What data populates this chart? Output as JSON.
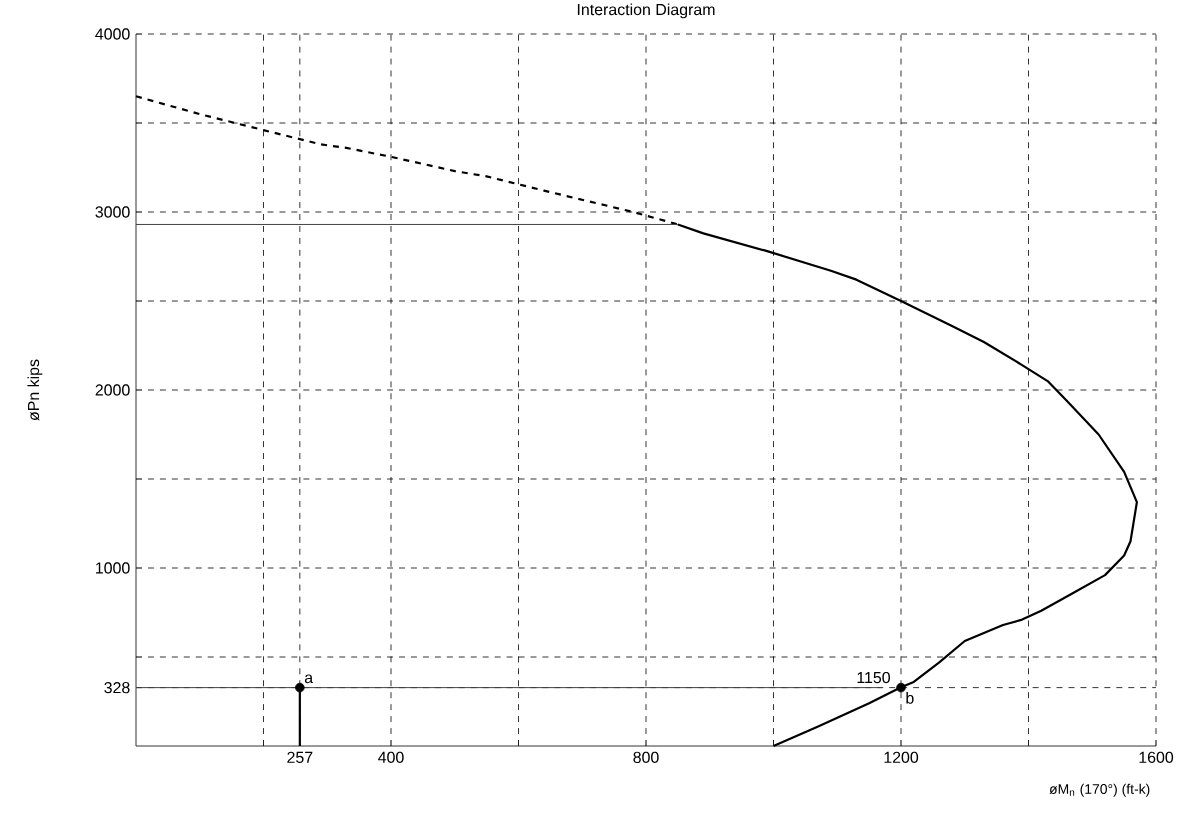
{
  "chart_data": {
    "type": "line",
    "title": "Interaction Diagram",
    "xlabel": "øM$_{n}$ (170°) (ft-k)",
    "ylabel": "øPn kips",
    "xlim": [
      0,
      1600
    ],
    "ylim": [
      0,
      4000
    ],
    "xticks": [
      {
        "value": 200,
        "label": null
      },
      257,
      400,
      {
        "value": 600,
        "label": null
      },
      800,
      {
        "value": 1000,
        "label": null
      },
      1200,
      {
        "value": 1400,
        "label": null
      },
      1600
    ],
    "yticks": [
      328,
      {
        "value": 500,
        "label": null
      },
      1000,
      {
        "value": 1500,
        "label": null
      },
      2000,
      {
        "value": 2500,
        "label": null
      },
      3000,
      {
        "value": 3500,
        "label": null
      },
      4000
    ],
    "grid": true,
    "series": [
      {
        "line_style": "dashed",
        "color": "#000000",
        "x": [
          0,
          100,
          200,
          290,
          330,
          400,
          500,
          550,
          640,
          710,
          780,
          850
        ],
        "values": [
          3650,
          3550,
          3460,
          3380,
          3360,
          3310,
          3230,
          3200,
          3120,
          3060,
          3000,
          2930
        ]
      },
      {
        "line_style": "solid",
        "color": "#000000",
        "x": [
          850,
          890,
          990,
          1090,
          1130,
          1200,
          1280,
          1330,
          1390,
          1430,
          1460,
          1510,
          1550,
          1570,
          1560,
          1550,
          1520,
          1470,
          1420,
          1390,
          1360,
          1300,
          1260,
          1220,
          1200,
          1150,
          1070,
          1000
        ],
        "values": [
          2930,
          2880,
          2780,
          2670,
          2620,
          2500,
          2360,
          2270,
          2140,
          2050,
          1940,
          1750,
          1540,
          1370,
          1150,
          1070,
          960,
          860,
          760,
          710,
          680,
          590,
          470,
          360,
          330,
          240,
          110,
          0
        ]
      },
      {
        "line_style": "solid",
        "color": "#404040",
        "x": [
          0,
          850
        ],
        "values": [
          2930,
          2930
        ]
      },
      {
        "line_style": "solid",
        "color": "#404040",
        "x": [
          0,
          1170
        ],
        "values": [
          328,
          328
        ]
      },
      {
        "line_style": "solid",
        "color": "#000000",
        "x": [
          257,
          257
        ],
        "values": [
          0,
          328
        ]
      },
      {
        "type": "scatter",
        "marker": "circle",
        "color": "#000000",
        "x": [
          257,
          1200
        ],
        "values": [
          328,
          328
        ],
        "value_labels": [
          "a",
          "b"
        ]
      }
    ],
    "annotations": [
      {
        "text": "1150",
        "x": 1200,
        "y": 328
      }
    ]
  }
}
